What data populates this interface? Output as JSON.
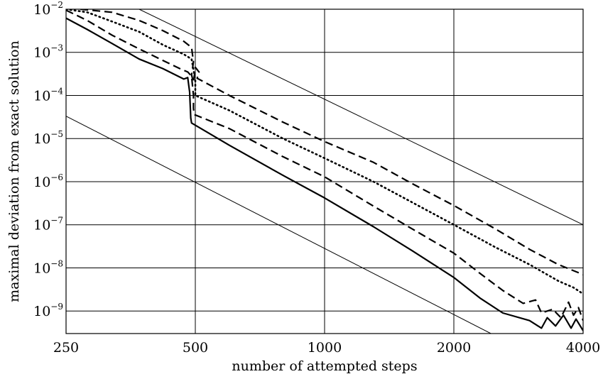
{
  "chart_data": {
    "type": "line",
    "xlabel": "number of attempted steps",
    "ylabel": "maximal deviation from exact solution",
    "x_scale": "log2",
    "y_scale": "log10",
    "xlim": [
      250,
      4000
    ],
    "ylim": [
      3e-10,
      0.01
    ],
    "x_ticks": [
      250,
      500,
      1000,
      2000,
      4000
    ],
    "x_tick_labels": [
      "250",
      "500",
      "1000",
      "2000",
      "4000"
    ],
    "y_ticks": [
      0.01,
      0.001,
      0.0001,
      1e-05,
      1e-06,
      1e-07,
      1e-08,
      1e-09
    ],
    "y_tick_labels": [
      {
        "base": "10",
        "exp": "−2"
      },
      {
        "base": "10",
        "exp": "−3"
      },
      {
        "base": "10",
        "exp": "−4"
      },
      {
        "base": "10",
        "exp": "−5"
      },
      {
        "base": "10",
        "exp": "−6"
      },
      {
        "base": "10",
        "exp": "−7"
      },
      {
        "base": "10",
        "exp": "−8"
      },
      {
        "base": "10",
        "exp": "−9"
      }
    ],
    "grid": true,
    "series": [
      {
        "style": "solid",
        "stroke": "#000000",
        "width": 2.2,
        "points": [
          [
            250,
            0.0062
          ],
          [
            280,
            0.0034
          ],
          [
            320,
            0.0016
          ],
          [
            370,
            0.0007
          ],
          [
            420,
            0.00042
          ],
          [
            470,
            0.00024
          ],
          [
            480,
            0.00026
          ],
          [
            485,
            0.00012
          ],
          [
            488,
            3e-05
          ],
          [
            490,
            2.3e-05
          ],
          [
            600,
            7e-06
          ],
          [
            800,
            1.4e-06
          ],
          [
            1000,
            4.2e-07
          ],
          [
            1300,
            9e-08
          ],
          [
            1600,
            2.5e-08
          ],
          [
            2000,
            6e-09
          ],
          [
            2300,
            2e-09
          ],
          [
            2600,
            9e-10
          ],
          [
            3000,
            6e-10
          ],
          [
            3200,
            4e-10
          ],
          [
            3300,
            7e-10
          ],
          [
            3450,
            4.5e-10
          ],
          [
            3600,
            8e-10
          ],
          [
            3750,
            4e-10
          ],
          [
            3850,
            6.5e-10
          ],
          [
            4000,
            3.5e-10
          ]
        ]
      },
      {
        "style": "dashed",
        "stroke": "#000000",
        "width": 2.2,
        "points": [
          [
            250,
            0.0095
          ],
          [
            280,
            0.0055
          ],
          [
            320,
            0.0025
          ],
          [
            370,
            0.0012
          ],
          [
            420,
            0.00065
          ],
          [
            460,
            0.00042
          ],
          [
            480,
            0.00035
          ],
          [
            490,
            0.00028
          ],
          [
            495,
            0.0001
          ],
          [
            495,
            5e-05
          ],
          [
            497,
            3.6e-05
          ],
          [
            600,
            1.7e-05
          ],
          [
            800,
            3.8e-06
          ],
          [
            1000,
            1.3e-06
          ],
          [
            1300,
            2.7e-07
          ],
          [
            1600,
            8e-08
          ],
          [
            2000,
            2.2e-08
          ],
          [
            2300,
            7.5e-09
          ],
          [
            2600,
            3e-09
          ],
          [
            2900,
            1.5e-09
          ],
          [
            3100,
            1.8e-09
          ],
          [
            3200,
            9e-10
          ],
          [
            3400,
            1.1e-09
          ],
          [
            3550,
            7e-10
          ],
          [
            3700,
            1.6e-09
          ],
          [
            3800,
            8e-10
          ],
          [
            3900,
            1.2e-09
          ],
          [
            4000,
            6e-10
          ]
        ]
      },
      {
        "style": "dotted",
        "stroke": "#000000",
        "width": 2.6,
        "points": [
          [
            250,
            0.01
          ],
          [
            280,
            0.0085
          ],
          [
            320,
            0.0052
          ],
          [
            370,
            0.003
          ],
          [
            420,
            0.0015
          ],
          [
            470,
            0.0009
          ],
          [
            490,
            0.0007
          ],
          [
            495,
            0.0004
          ],
          [
            500,
            0.00022
          ],
          [
            500,
            0.0001
          ],
          [
            600,
            4.5e-05
          ],
          [
            800,
            1e-05
          ],
          [
            1000,
            3.5e-06
          ],
          [
            1300,
            1e-06
          ],
          [
            1600,
            3.3e-07
          ],
          [
            2000,
            1e-07
          ],
          [
            2500,
            3e-08
          ],
          [
            3000,
            1.2e-08
          ],
          [
            3500,
            5e-09
          ],
          [
            3800,
            3.5e-09
          ],
          [
            4000,
            2.5e-09
          ]
        ]
      },
      {
        "style": "dashed",
        "stroke": "#000000",
        "width": 2.2,
        "points": [
          [
            270,
            0.01
          ],
          [
            320,
            0.0085
          ],
          [
            370,
            0.0055
          ],
          [
            420,
            0.0032
          ],
          [
            470,
            0.0018
          ],
          [
            490,
            0.0013
          ],
          [
            495,
            0.0006
          ],
          [
            490,
            0.0003
          ],
          [
            495,
            0.0002
          ],
          [
            500,
            0.00045
          ],
          [
            510,
            0.00035
          ],
          [
            505,
            0.00025
          ],
          [
            600,
            0.0001
          ],
          [
            800,
            2.4e-05
          ],
          [
            1000,
            8.5e-06
          ],
          [
            1300,
            2.8e-06
          ],
          [
            1600,
            9e-07
          ],
          [
            2000,
            2.8e-07
          ],
          [
            2500,
            8e-08
          ],
          [
            3000,
            2.7e-08
          ],
          [
            3500,
            1.2e-08
          ],
          [
            4000,
            7e-09
          ]
        ]
      },
      {
        "style": "thin",
        "stroke": "#000000",
        "width": 1,
        "points": [
          [
            250,
            3.3e-05
          ],
          [
            2440,
            3e-10
          ]
        ]
      },
      {
        "style": "thin",
        "stroke": "#000000",
        "width": 1,
        "points": [
          [
            370,
            0.01
          ],
          [
            4000,
            1e-07
          ]
        ]
      }
    ]
  }
}
